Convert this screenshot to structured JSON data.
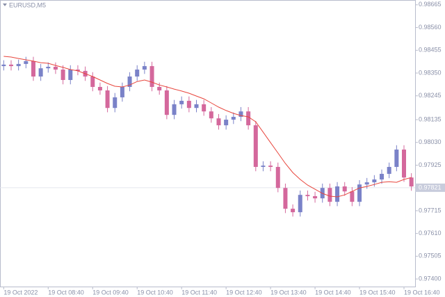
{
  "chart_data": {
    "type": "candlestick",
    "title": "EURUSD,M5",
    "categories": [
      "19 Oct 2022",
      null,
      null,
      null,
      null,
      null,
      "19 Oct 08:40",
      null,
      null,
      null,
      null,
      null,
      "19 Oct 09:40",
      null,
      null,
      null,
      null,
      null,
      "19 Oct 10:40",
      null,
      null,
      null,
      null,
      null,
      "19 Oct 11:40",
      null,
      null,
      null,
      null,
      null,
      "19 Oct 12:40",
      null,
      null,
      null,
      null,
      null,
      "19 Oct 13:40",
      null,
      null,
      null,
      null,
      null,
      "19 Oct 14:40",
      null,
      null,
      null,
      null,
      null,
      "19 Oct 15:40",
      null,
      null,
      null,
      null,
      null,
      "19 Oct 16:40",
      null
    ],
    "open": [
      0.98382,
      0.98389,
      0.98382,
      0.98392,
      0.98405,
      0.98334,
      0.98372,
      0.98379,
      0.98366,
      0.98318,
      0.98366,
      0.9836,
      0.98334,
      0.98286,
      0.9827,
      0.98189,
      0.98238,
      0.98286,
      0.98334,
      0.98366,
      0.98382,
      0.98286,
      0.9827,
      0.98157,
      0.98206,
      0.98222,
      0.98189,
      0.98206,
      0.98173,
      0.98141,
      0.98109,
      0.98135,
      0.98148,
      0.98173,
      0.98109,
      0.97917,
      0.97923,
      0.97917,
      0.9782,
      0.97724,
      0.97708,
      0.97788,
      0.97782,
      0.97772,
      0.9782,
      0.97756,
      0.97827,
      0.97804,
      0.97756,
      0.97836,
      0.97846,
      0.97859,
      0.97885,
      0.97917,
      0.97997,
      0.97868
    ],
    "high": [
      0.98409,
      0.98409,
      0.98412,
      0.98425,
      0.98425,
      0.98392,
      0.98399,
      0.98399,
      0.98386,
      0.98386,
      0.98386,
      0.9838,
      0.98354,
      0.98306,
      0.9829,
      0.98258,
      0.98306,
      0.98354,
      0.98386,
      0.98402,
      0.98402,
      0.98306,
      0.9829,
      0.98226,
      0.98242,
      0.98242,
      0.98226,
      0.98226,
      0.98193,
      0.98161,
      0.98155,
      0.98168,
      0.98193,
      0.98193,
      0.98129,
      0.97943,
      0.97943,
      0.97937,
      0.9784,
      0.97744,
      0.97808,
      0.97808,
      0.97802,
      0.9784,
      0.9784,
      0.97847,
      0.97847,
      0.97824,
      0.97856,
      0.97866,
      0.97879,
      0.97905,
      0.97937,
      0.98017,
      0.98017,
      0.97888
    ],
    "low": [
      0.98362,
      0.98362,
      0.98362,
      0.98372,
      0.98314,
      0.98314,
      0.98352,
      0.98346,
      0.98298,
      0.98298,
      0.9834,
      0.98314,
      0.98266,
      0.9825,
      0.98169,
      0.98169,
      0.98218,
      0.98266,
      0.98314,
      0.98346,
      0.98266,
      0.9825,
      0.98137,
      0.98137,
      0.98186,
      0.98169,
      0.98169,
      0.98153,
      0.98121,
      0.98089,
      0.98089,
      0.98115,
      0.98128,
      0.98089,
      0.97897,
      0.97897,
      0.97897,
      0.978,
      0.97704,
      0.97688,
      0.97688,
      0.97762,
      0.97752,
      0.97752,
      0.97736,
      0.97736,
      0.97784,
      0.97736,
      0.97736,
      0.97816,
      0.97826,
      0.97839,
      0.97865,
      0.97897,
      0.97848,
      0.97807
    ],
    "close": [
      0.98389,
      0.98382,
      0.98392,
      0.98405,
      0.98334,
      0.98372,
      0.98379,
      0.98366,
      0.98318,
      0.98366,
      0.9836,
      0.98334,
      0.98286,
      0.9827,
      0.98189,
      0.98238,
      0.98286,
      0.98334,
      0.98366,
      0.98382,
      0.98286,
      0.9827,
      0.98157,
      0.98206,
      0.98222,
      0.98189,
      0.98206,
      0.98173,
      0.98141,
      0.98109,
      0.98135,
      0.98148,
      0.98173,
      0.98109,
      0.97917,
      0.97923,
      0.97917,
      0.9782,
      0.97724,
      0.97708,
      0.97788,
      0.97782,
      0.97772,
      0.9782,
      0.97756,
      0.97827,
      0.97804,
      0.97756,
      0.97836,
      0.97846,
      0.97859,
      0.97885,
      0.97917,
      0.97997,
      0.97868,
      0.97827
    ],
    "ma_values": [
      0.98427,
      0.98424,
      0.98417,
      0.98411,
      0.98405,
      0.98398,
      0.98395,
      0.98385,
      0.98376,
      0.98366,
      0.9836,
      0.98347,
      0.98334,
      0.98318,
      0.98302,
      0.98289,
      0.98286,
      0.98295,
      0.98311,
      0.98318,
      0.98308,
      0.98295,
      0.98286,
      0.98276,
      0.98267,
      0.98257,
      0.98244,
      0.98231,
      0.98212,
      0.98193,
      0.98177,
      0.98164,
      0.98154,
      0.98148,
      0.98125,
      0.98077,
      0.98029,
      0.97981,
      0.97933,
      0.97891,
      0.97859,
      0.97833,
      0.97814,
      0.97795,
      0.97782,
      0.97779,
      0.97788,
      0.97804,
      0.9782,
      0.97827,
      0.97836,
      0.97846,
      0.97849,
      0.97846,
      0.97859,
      0.97868
    ],
    "ma_color": "#e8453c",
    "up_color": "#7a82c8",
    "down_color": "#d4689c",
    "current_price": 0.97821,
    "ylim": [
      0.97365,
      0.98687
    ],
    "yticks": [
      0.98665,
      {
        "value": 0.9856,
        "label": "0.98560"
      },
      0.98455,
      {
        "value": 0.9835,
        "label": "0.98350"
      },
      0.98245,
      0.98135,
      {
        "value": 0.9803,
        "label": "0.98030"
      },
      0.97925,
      0.97715,
      {
        "value": 0.9761,
        "label": "0.97610"
      },
      0.97505,
      {
        "value": 0.974,
        "label": "0.97400"
      }
    ]
  }
}
